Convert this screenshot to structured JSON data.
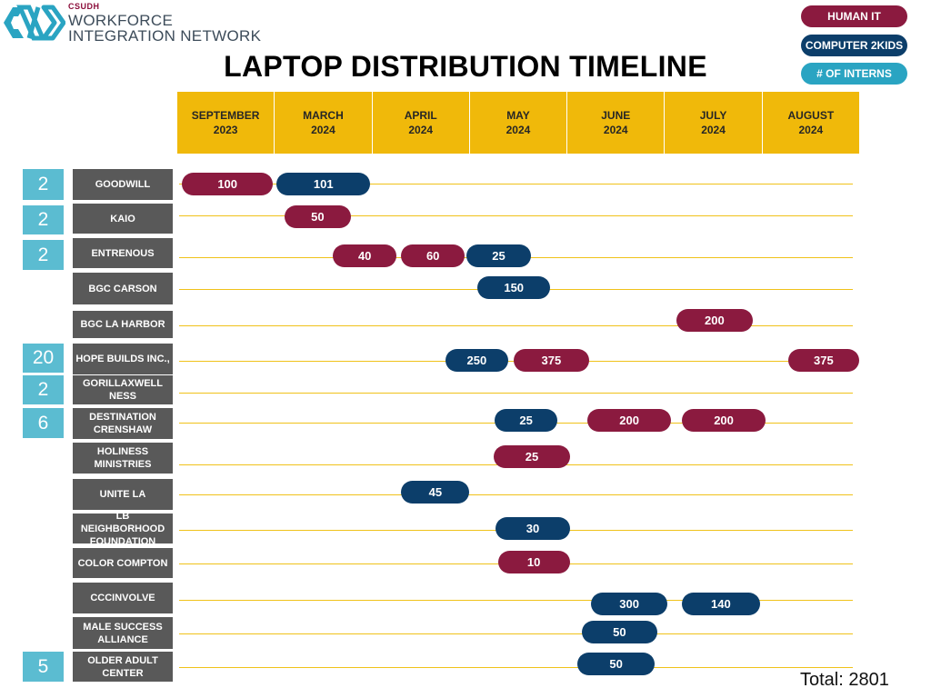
{
  "logo": {
    "csudh": "CSUDH",
    "line1": "WORKFORCE",
    "line2": "INTEGRATION NETWORK"
  },
  "colors": {
    "human_it": "#8b1a3f",
    "computer_2kids": "#0c3e6a",
    "interns": "#2aa4c2",
    "intern_box": "#5bbcd1",
    "header": "#f0b90a",
    "row_label": "#595959",
    "grid_line": "#f0c21a"
  },
  "legend": [
    {
      "key": "human_it",
      "label": "HUMAN IT"
    },
    {
      "key": "computer_2kids",
      "label": "COMPUTER 2KIDS"
    },
    {
      "key": "interns",
      "label": "# OF INTERNS"
    }
  ],
  "chart_data": {
    "type": "timeline",
    "title": "LAPTOP DISTRIBUTION TIMELINE",
    "months": [
      "SEPTEMBER\n2023",
      "MARCH\n2024",
      "APRIL\n2024",
      "MAY\n2024",
      "JUNE\n2024",
      "JULY\n2024",
      "AUGUST\n2024"
    ],
    "rows": [
      {
        "org": "GOODWILL",
        "interns": "2",
        "bars": [
          {
            "provider": "human_it",
            "value": 100,
            "start": 0.05,
            "end": 0.98
          },
          {
            "provider": "computer_2kids",
            "value": 101,
            "start": 1.02,
            "end": 1.98
          }
        ]
      },
      {
        "org": "KAIO",
        "interns": "2",
        "bars": [
          {
            "provider": "human_it",
            "value": 50,
            "start": 1.1,
            "end": 1.78
          }
        ]
      },
      {
        "org": "ENTRENOUS",
        "interns": "2",
        "bars": [
          {
            "provider": "human_it",
            "value": 40,
            "start": 1.6,
            "end": 2.25
          },
          {
            "provider": "human_it",
            "value": 60,
            "start": 2.3,
            "end": 2.95
          },
          {
            "provider": "computer_2kids",
            "value": 25,
            "start": 2.97,
            "end": 3.63
          }
        ]
      },
      {
        "org": "BGC CARSON",
        "interns": "",
        "bars": [
          {
            "provider": "computer_2kids",
            "value": 150,
            "start": 3.08,
            "end": 3.83
          }
        ]
      },
      {
        "org": "BGC LA HARBOR",
        "interns": "",
        "bars": [
          {
            "provider": "human_it",
            "value": 200,
            "start": 5.12,
            "end": 5.91
          }
        ]
      },
      {
        "org": "HOPE BUILDS INC.,",
        "interns": "20",
        "bars": [
          {
            "provider": "computer_2kids",
            "value": 250,
            "start": 2.75,
            "end": 3.4
          },
          {
            "provider": "human_it",
            "value": 375,
            "start": 3.45,
            "end": 4.23
          },
          {
            "provider": "human_it",
            "value": 375,
            "start": 6.27,
            "end": 7.0
          }
        ]
      },
      {
        "org": "GORILLAXWELL NESS",
        "interns": "2",
        "bars": []
      },
      {
        "org": "DESTINATION CRENSHAW",
        "interns": "6",
        "bars": [
          {
            "provider": "computer_2kids",
            "value": 25,
            "start": 3.26,
            "end": 3.9
          },
          {
            "provider": "human_it",
            "value": 200,
            "start": 4.21,
            "end": 5.07
          },
          {
            "provider": "human_it",
            "value": 200,
            "start": 5.18,
            "end": 6.04
          }
        ]
      },
      {
        "org": "HOLINESS MINISTRIES",
        "interns": "",
        "bars": [
          {
            "provider": "human_it",
            "value": 25,
            "start": 3.25,
            "end": 4.03
          }
        ]
      },
      {
        "org": "UNITE LA",
        "interns": "",
        "bars": [
          {
            "provider": "computer_2kids",
            "value": 45,
            "start": 2.3,
            "end": 3.0
          }
        ]
      },
      {
        "org": "LB NEIGHBORHOOD FOUNDATION",
        "interns": "",
        "bars": [
          {
            "provider": "computer_2kids",
            "value": 30,
            "start": 3.27,
            "end": 4.03
          }
        ]
      },
      {
        "org": "COLOR COMPTON",
        "interns": "",
        "bars": [
          {
            "provider": "human_it",
            "value": 10,
            "start": 3.29,
            "end": 4.03
          }
        ]
      },
      {
        "org": "CCCINVOLVE",
        "interns": "",
        "bars": [
          {
            "provider": "computer_2kids",
            "value": 300,
            "start": 4.25,
            "end": 5.03
          },
          {
            "provider": "computer_2kids",
            "value": 140,
            "start": 5.18,
            "end": 5.98
          }
        ]
      },
      {
        "org": "MALE SUCCESS ALLIANCE",
        "interns": "",
        "bars": [
          {
            "provider": "computer_2kids",
            "value": 50,
            "start": 4.15,
            "end": 4.93
          }
        ]
      },
      {
        "org": "OLDER ADULT CENTER",
        "interns": "5",
        "bars": [
          {
            "provider": "computer_2kids",
            "value": 50,
            "start": 4.11,
            "end": 4.9
          }
        ]
      }
    ],
    "total": "Total: 2801"
  }
}
